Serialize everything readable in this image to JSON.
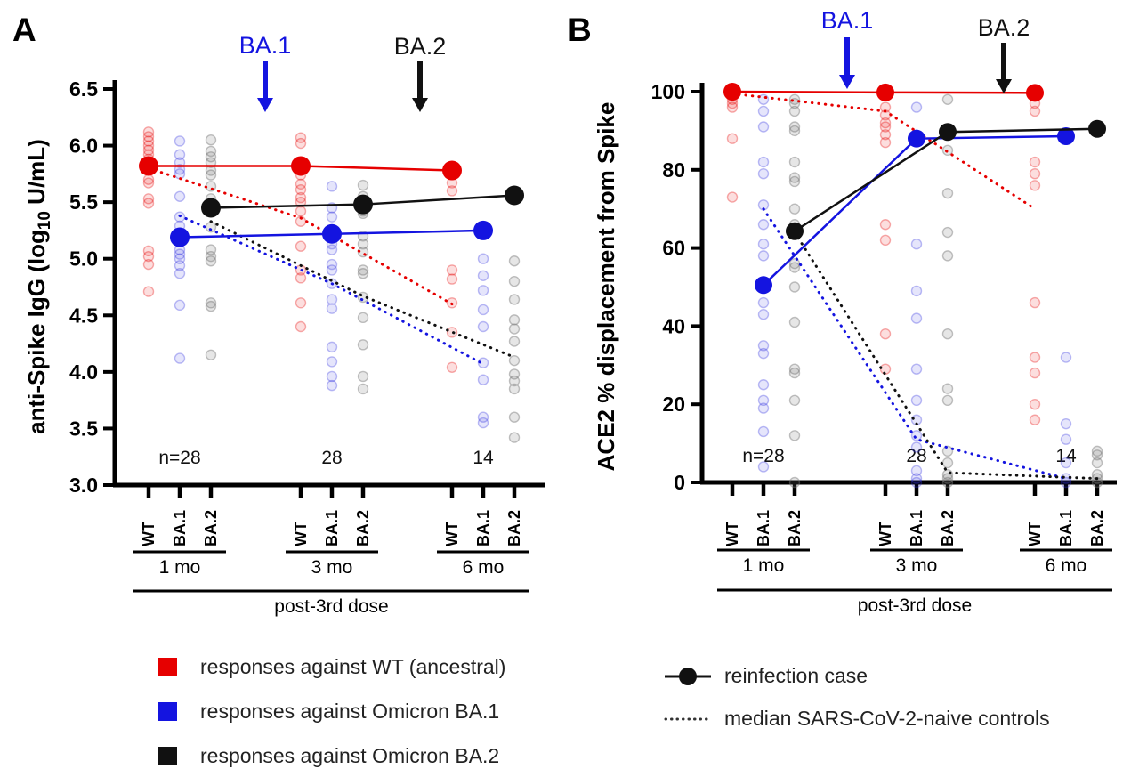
{
  "figure": {
    "background": "#ffffff"
  },
  "chart_data": [
    {
      "type": "scatter",
      "panel_letter": "A",
      "ylabel": {
        "prefix": "anti-Spike IgG (log",
        "sub": "10",
        "suffix": " U/mL)"
      },
      "ylim": [
        3.0,
        6.5
      ],
      "ytick_labels": [
        "6.5",
        "6.0",
        "5.5",
        "5.0",
        "4.5",
        "4.0",
        "3.5",
        "3.0"
      ],
      "yticks": [
        6.5,
        6.0,
        5.5,
        5.0,
        4.5,
        4.0,
        3.5,
        3.0
      ],
      "grid": "off",
      "groups": [
        "1 mo",
        "3 mo",
        "6 mo"
      ],
      "categories": [
        "WT",
        "BA.1",
        "BA.2"
      ],
      "n_labels": [
        "n=28",
        "28",
        "14"
      ],
      "bracket_label": "post-3rd dose",
      "annotations": [
        {
          "label": "BA.1",
          "color": "#1414e0"
        },
        {
          "label": "BA.2",
          "color": "#111111"
        }
      ],
      "series": [
        {
          "name": "WT",
          "color": "#e60000",
          "reinfection_solid": [
            5.82,
            5.82,
            5.78
          ],
          "naive_median_dotted": [
            5.8,
            5.36,
            4.6
          ]
        },
        {
          "name": "BA.1",
          "color": "#1414e0",
          "reinfection_solid": [
            5.19,
            5.22,
            5.25
          ],
          "naive_median_dotted": [
            5.38,
            4.78,
            4.07
          ]
        },
        {
          "name": "BA.2",
          "color": "#111111",
          "reinfection_solid": [
            5.45,
            5.48,
            5.56
          ],
          "naive_median_dotted": [
            5.33,
            4.67,
            4.13
          ]
        }
      ],
      "scatter_colors": [
        "#e60000",
        "#3333e0",
        "#777777"
      ],
      "scatter": [
        [
          6.12,
          6.08,
          6.04,
          6.0,
          5.96,
          5.92,
          5.88,
          5.7,
          5.67,
          5.53,
          5.49,
          5.07,
          5.02,
          4.95,
          4.71
        ],
        [
          6.04,
          5.92,
          5.85,
          5.79,
          5.75,
          5.55,
          5.37,
          5.29,
          5.08,
          5.04,
          5.0,
          4.94,
          4.87,
          4.59,
          4.12
        ],
        [
          6.05,
          5.95,
          5.9,
          5.85,
          5.78,
          5.74,
          5.64,
          5.53,
          5.28,
          5.08,
          5.02,
          4.98,
          4.61,
          4.58,
          4.15
        ],
        [
          6.07,
          6.02,
          5.78,
          5.74,
          5.66,
          5.61,
          5.54,
          5.5,
          5.42,
          5.33,
          5.11,
          4.9,
          4.83,
          4.61,
          4.4
        ],
        [
          5.64,
          5.45,
          5.37,
          5.13,
          5.08,
          4.95,
          4.9,
          4.78,
          4.64,
          4.56,
          4.22,
          4.09,
          3.96,
          3.88
        ],
        [
          5.65,
          5.55,
          5.42,
          5.4,
          5.2,
          5.13,
          5.06,
          4.9,
          4.87,
          4.66,
          4.48,
          4.24,
          3.96,
          3.85
        ],
        [
          5.67,
          5.6,
          4.9,
          4.82,
          4.61,
          4.35,
          4.04
        ],
        [
          5.0,
          4.85,
          4.72,
          4.55,
          4.4,
          4.08,
          3.93,
          3.6,
          3.55
        ],
        [
          4.98,
          4.8,
          4.64,
          4.46,
          4.38,
          4.27,
          4.1,
          3.98,
          3.92,
          3.85,
          3.6,
          3.42
        ]
      ]
    },
    {
      "type": "scatter",
      "panel_letter": "B",
      "ylabel": {
        "prefix": "ACE2 % displacement from Spike",
        "sub": "",
        "suffix": ""
      },
      "ylim": [
        0,
        100
      ],
      "ytick_labels": [
        "100",
        "80",
        "60",
        "40",
        "20",
        "0"
      ],
      "yticks": [
        100,
        80,
        60,
        40,
        20,
        0
      ],
      "grid": "off",
      "groups": [
        "1 mo",
        "3 mo",
        "6 mo"
      ],
      "categories": [
        "WT",
        "BA.1",
        "BA.2"
      ],
      "n_labels": [
        "n=28",
        "28",
        "14"
      ],
      "bracket_label": "post-3rd dose",
      "annotations": [
        {
          "label": "BA.1",
          "color": "#1414e0"
        },
        {
          "label": "BA.2",
          "color": "#111111"
        }
      ],
      "series": [
        {
          "name": "WT",
          "color": "#e60000",
          "reinfection_solid": [
            100,
            99.8,
            99.7
          ],
          "naive_median_dotted": [
            99.5,
            95,
            70
          ]
        },
        {
          "name": "BA.1",
          "color": "#1414e0",
          "reinfection_solid": [
            50.5,
            88,
            88.6
          ],
          "naive_median_dotted": [
            70,
            11,
            1
          ]
        },
        {
          "name": "BA.2",
          "color": "#111111",
          "reinfection_solid": [
            64.3,
            89.7,
            90.5
          ],
          "naive_median_dotted": [
            64,
            2.5,
            1
          ]
        }
      ],
      "scatter_colors": [
        "#e60000",
        "#3333e0",
        "#777777"
      ],
      "scatter": [
        [
          100,
          99,
          98,
          97,
          96,
          88,
          73
        ],
        [
          98,
          95,
          91,
          82,
          79,
          71,
          66,
          61,
          58,
          50,
          46,
          43,
          35,
          33,
          25,
          21,
          19,
          13,
          4
        ],
        [
          98,
          97,
          95,
          91,
          90,
          82,
          78,
          77,
          70,
          66,
          56,
          55,
          50,
          41,
          29,
          28,
          21,
          12,
          0
        ],
        [
          100,
          99,
          96,
          94,
          92,
          91,
          89,
          87,
          66,
          62,
          38,
          29
        ],
        [
          96,
          88,
          61,
          49,
          42,
          29,
          21,
          16,
          12,
          9,
          3,
          1,
          0
        ],
        [
          98,
          85,
          74,
          64,
          58,
          38,
          24,
          21,
          8,
          5,
          2,
          1,
          0
        ],
        [
          100,
          97,
          95,
          82,
          79,
          76,
          46,
          32,
          28,
          20,
          16
        ],
        [
          89,
          32,
          15,
          11,
          5,
          1,
          0
        ],
        [
          90,
          8,
          7,
          5,
          2,
          1,
          0
        ]
      ]
    }
  ],
  "legend_left": {
    "items": [
      {
        "label": "responses against WT (ancestral)",
        "color": "#e60000"
      },
      {
        "label": "responses against Omicron BA.1",
        "color": "#1414e0"
      },
      {
        "label": "responses against Omicron BA.2",
        "color": "#111111"
      }
    ]
  },
  "legend_right": {
    "items": [
      {
        "label": "reinfection case",
        "marker": "line-dot"
      },
      {
        "label": "median SARS-CoV-2-naive controls",
        "marker": "dotted-line"
      }
    ]
  }
}
